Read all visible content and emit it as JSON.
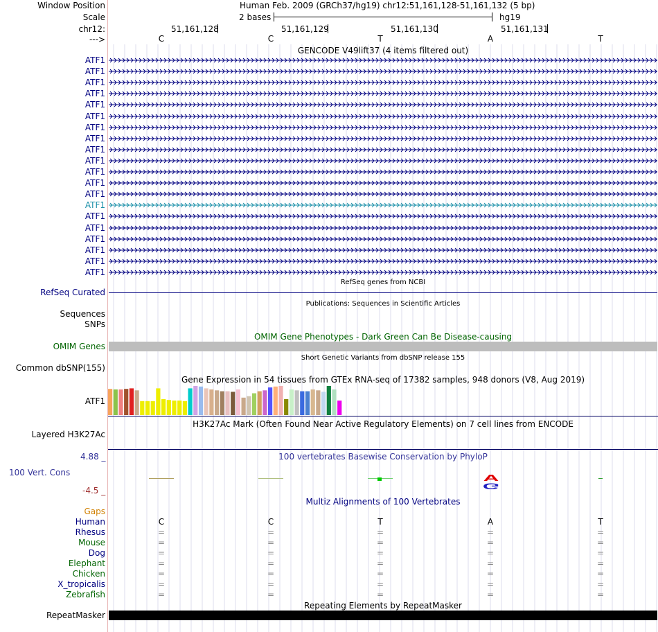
{
  "header": {
    "window_position_label": "Window Position",
    "scale_label": "Scale",
    "chrom_label": "chr12:",
    "strand_label": "--->",
    "assembly_title": "Human Feb. 2009 (GRCh37/hg19)   chr12:51,161,128-51,161,132 (5 bp)",
    "scale_text": "2 bases",
    "scale_db": "hg19",
    "positions": [
      "51,161,128",
      "51,161,129",
      "51,161,130",
      "51,161,131"
    ],
    "bases": [
      "C",
      "C",
      "T",
      "A",
      "T"
    ]
  },
  "gencode": {
    "title": "GENCODE V49lift37 (4 items filtered out)",
    "genes": [
      "ATF1",
      "ATF1",
      "ATF1",
      "ATF1",
      "ATF1",
      "ATF1",
      "ATF1",
      "ATF1",
      "ATF1",
      "ATF1",
      "ATF1",
      "ATF1",
      "ATF1",
      "ATF1",
      "ATF1",
      "ATF1",
      "ATF1",
      "ATF1",
      "ATF1",
      "ATF1"
    ],
    "highlight_index": 13,
    "color": "#000080",
    "highlight_color": "#1a8fa8"
  },
  "refseq": {
    "title": "RefSeq genes from NCBI",
    "label": "RefSeq Curated"
  },
  "publications": {
    "title": "Publications: Sequences in Scientific Articles",
    "label": "Sequences",
    "label2": "SNPs"
  },
  "omim": {
    "title": "OMIM Gene Phenotypes - Dark Green Can Be Disease-causing",
    "label": "OMIM Genes"
  },
  "dbsnp": {
    "title": "Short Genetic Variants from dbSNP release 155",
    "label": "Common dbSNP(155)"
  },
  "gtex": {
    "title": "Gene Expression in 54 tissues from GTEx RNA-seq of 17382 samples, 948 donors (V8, Aug 2019)",
    "label": "ATF1",
    "bars": [
      {
        "c": "#f7a35c",
        "v": 0.9
      },
      {
        "c": "#8bc34a",
        "v": 0.88
      },
      {
        "c": "#f08080",
        "v": 0.88
      },
      {
        "c": "#a0522d",
        "v": 0.9
      },
      {
        "c": "#e02020",
        "v": 0.92
      },
      {
        "c": "#c9a98b",
        "v": 0.85
      },
      {
        "c": "#eeee00",
        "v": 0.48
      },
      {
        "c": "#eeee00",
        "v": 0.48
      },
      {
        "c": "#eeee00",
        "v": 0.48
      },
      {
        "c": "#eeee00",
        "v": 0.92
      },
      {
        "c": "#eeee00",
        "v": 0.55
      },
      {
        "c": "#eeee00",
        "v": 0.52
      },
      {
        "c": "#eeee00",
        "v": 0.5
      },
      {
        "c": "#eeee00",
        "v": 0.5
      },
      {
        "c": "#eeee00",
        "v": 0.48
      },
      {
        "c": "#00cccc",
        "v": 0.92
      },
      {
        "c": "#cfa3e6",
        "v": 1.0
      },
      {
        "c": "#99bbee",
        "v": 0.98
      },
      {
        "c": "#eac5b8",
        "v": 0.92
      },
      {
        "c": "#d8b08c",
        "v": 0.88
      },
      {
        "c": "#c9a98b",
        "v": 0.85
      },
      {
        "c": "#a08060",
        "v": 0.82
      },
      {
        "c": "#e8c0c0",
        "v": 0.82
      },
      {
        "c": "#7a5a3a",
        "v": 0.8
      },
      {
        "c": "#f5c0d0",
        "v": 0.88
      },
      {
        "c": "#c9a98b",
        "v": 0.6
      },
      {
        "c": "#d0c4b0",
        "v": 0.65
      },
      {
        "c": "#a0d060",
        "v": 0.75
      },
      {
        "c": "#d4a060",
        "v": 0.82
      },
      {
        "c": "#cc66cc",
        "v": 0.85
      },
      {
        "c": "#5555ff",
        "v": 0.95
      },
      {
        "c": "#ffb07a",
        "v": 0.98
      },
      {
        "c": "#f0b0b0",
        "v": 1.0
      },
      {
        "c": "#888800",
        "v": 0.55
      },
      {
        "c": "#c8f0c8",
        "v": 0.88
      },
      {
        "c": "#c0c0c0",
        "v": 0.85
      },
      {
        "c": "#3a6ae0",
        "v": 0.82
      },
      {
        "c": "#4a80d0",
        "v": 0.82
      },
      {
        "c": "#d8b890",
        "v": 0.88
      },
      {
        "c": "#c9a98b",
        "v": 0.85
      },
      {
        "c": "#c0d8f0",
        "v": 0.8
      },
      {
        "c": "#108040",
        "v": 1.0
      },
      {
        "c": "#b0e0c0",
        "v": 0.88
      },
      {
        "c": "#ee00ee",
        "v": 0.5
      }
    ]
  },
  "h3k27ac": {
    "title": "H3K27Ac Mark (Often Found Near Active Regulatory Elements) on 7 cell lines from ENCODE",
    "label": "Layered H3K27Ac"
  },
  "cons": {
    "title": "100 vertebrates Basewise Conservation by PhyloP",
    "label": "100 Vert. Cons",
    "max_label": "4.88 _",
    "min_label": "-4.5 _",
    "logo_top": "A",
    "logo_bottom": "G"
  },
  "multiz": {
    "title": "Multiz Alignments of 100 Vertebrates",
    "gaps_label": "Gaps",
    "species": [
      {
        "name": "Human",
        "cls": "navy"
      },
      {
        "name": "Rhesus",
        "cls": "navy"
      },
      {
        "name": "Mouse",
        "cls": "green"
      },
      {
        "name": "Dog",
        "cls": "navy"
      },
      {
        "name": "Elephant",
        "cls": "green"
      },
      {
        "name": "Chicken",
        "cls": "green"
      },
      {
        "name": "X_tropicalis",
        "cls": "navy"
      },
      {
        "name": "Zebrafish",
        "cls": "green"
      }
    ],
    "human_bases": [
      "C",
      "C",
      "T",
      "A",
      "T"
    ],
    "match_char": "="
  },
  "repeatmasker": {
    "title": "Repeating Elements by RepeatMasker",
    "label": "RepeatMasker"
  }
}
